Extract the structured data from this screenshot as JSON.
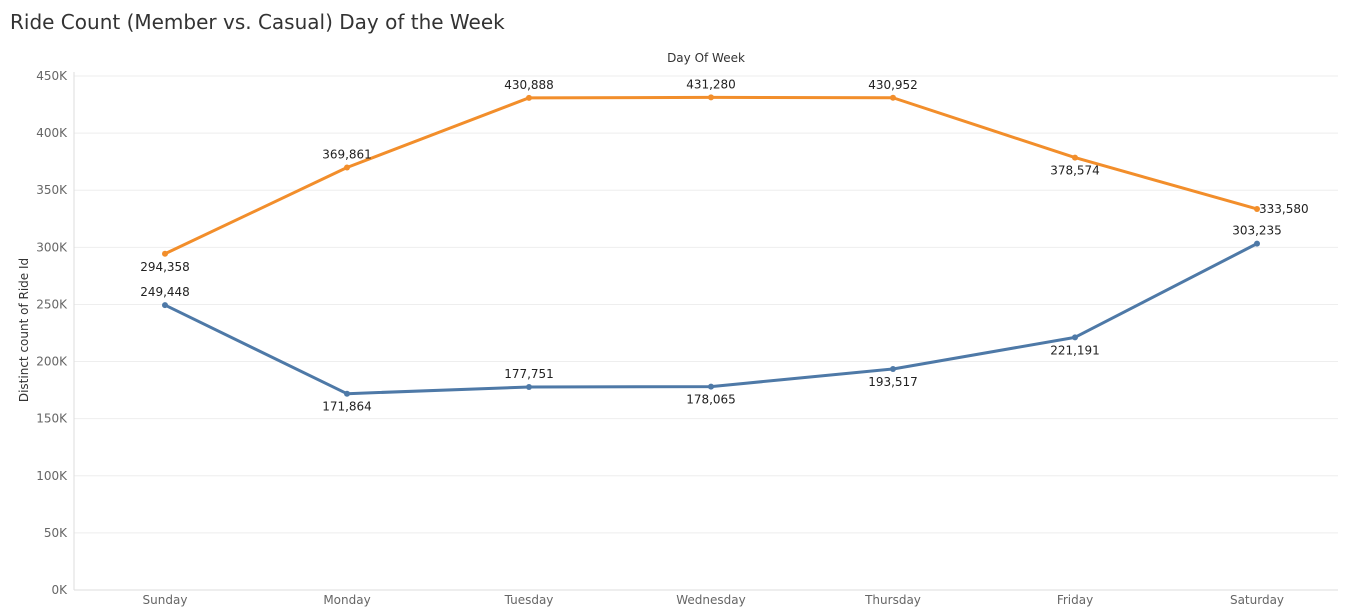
{
  "title": "Ride Count (Member vs. Casual) Day of the Week",
  "chart_data": {
    "type": "line",
    "title": "Ride Count (Member vs. Casual) Day of the Week",
    "xlabel": "Day Of Week",
    "ylabel": "Distinct count of Ride Id",
    "categories": [
      "Sunday",
      "Monday",
      "Tuesday",
      "Wednesday",
      "Thursday",
      "Friday",
      "Saturday"
    ],
    "ylim": [
      0,
      450000
    ],
    "yticks": [
      {
        "value": 0,
        "label": "0K"
      },
      {
        "value": 50000,
        "label": "50K"
      },
      {
        "value": 100000,
        "label": "100K"
      },
      {
        "value": 150000,
        "label": "150K"
      },
      {
        "value": 200000,
        "label": "200K"
      },
      {
        "value": 250000,
        "label": "250K"
      },
      {
        "value": 300000,
        "label": "300K"
      },
      {
        "value": 350000,
        "label": "350K"
      },
      {
        "value": 400000,
        "label": "400K"
      },
      {
        "value": 450000,
        "label": "450K"
      }
    ],
    "grid": true,
    "series": [
      {
        "color": "#f28e2b",
        "values": [
          294358,
          369861,
          430888,
          431280,
          430952,
          378574,
          333580
        ],
        "labels": [
          "294,358",
          "369,861",
          "430,888",
          "431,280",
          "430,952",
          "378,574",
          "333,580"
        ],
        "label_side": [
          "below",
          "above",
          "above",
          "above",
          "above",
          "below",
          "right"
        ]
      },
      {
        "color": "#4e79a7",
        "values": [
          249448,
          171864,
          177751,
          178065,
          193517,
          221191,
          303235
        ],
        "labels": [
          "249,448",
          "171,864",
          "177,751",
          "178,065",
          "193,517",
          "221,191",
          "303,235"
        ],
        "label_side": [
          "above",
          "below",
          "above",
          "below",
          "below",
          "below",
          "above"
        ]
      }
    ]
  }
}
